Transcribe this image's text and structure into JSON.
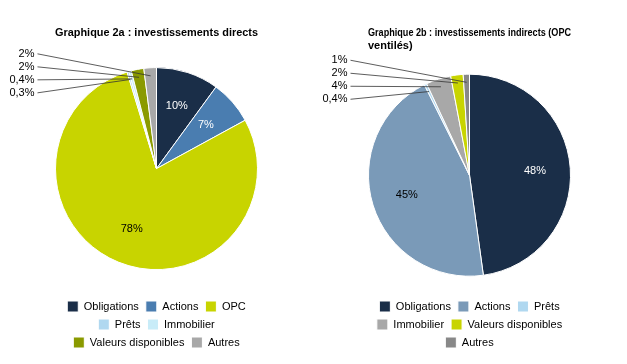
{
  "chart_data": [
    {
      "type": "pie",
      "title": "Graphique 2a : investissements directs",
      "categories": [
        "Obligations",
        "Actions",
        "OPC",
        "Prêts",
        "Immobilier",
        "Valeurs disponibles",
        "Autres"
      ],
      "values": [
        10,
        7,
        78,
        0.3,
        0.4,
        2,
        2
      ],
      "value_labels": [
        "10%",
        "7%",
        "78%",
        "0,3%",
        "0,4%",
        "2%",
        "2%"
      ],
      "colors": [
        "#1a2e48",
        "#4a7db0",
        "#c8d400",
        "#b0d8f0",
        "#c8ecf8",
        "#8a9a00",
        "#a8a8a8"
      ],
      "data_labels": true,
      "legend": "bottom"
    },
    {
      "type": "pie",
      "title": "Graphique 2b : investissements indirects (OPC\nventilés)",
      "categories": [
        "Obligations",
        "Actions",
        "Prêts",
        "Immobilier",
        "Valeurs disponibles",
        "Autres"
      ],
      "values": [
        48,
        45,
        0.4,
        4,
        2,
        1
      ],
      "value_labels": [
        "48%",
        "45%",
        "0,4%",
        "4%",
        "2%",
        "1%"
      ],
      "colors": [
        "#1a2e48",
        "#7a9ab8",
        "#b0d8f0",
        "#a8a8a8",
        "#c8d400",
        "#888888"
      ],
      "data_labels": true,
      "legend": "bottom"
    }
  ]
}
